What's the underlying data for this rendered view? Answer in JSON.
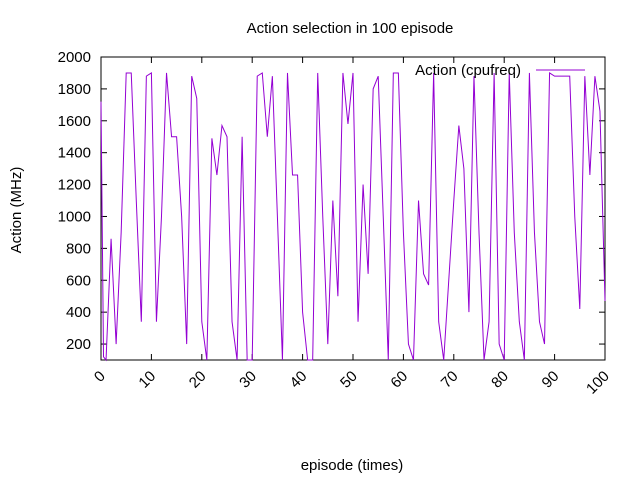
{
  "chart_data": {
    "type": "line",
    "title": "Action selection in 100 episode",
    "xlabel": "episode (times)",
    "ylabel": "Action (MHz)",
    "xlim": [
      0,
      100
    ],
    "ylim": [
      100,
      2000
    ],
    "xticks": [
      0,
      10,
      20,
      30,
      40,
      50,
      60,
      70,
      80,
      90,
      100
    ],
    "yticks": [
      200,
      400,
      600,
      800,
      1000,
      1200,
      1400,
      1600,
      1800,
      2000
    ],
    "grid": false,
    "legend_position": "top-right",
    "series": [
      {
        "name": "Action (cpufreq)",
        "color": "#9400d3",
        "x": [
          0,
          0.5,
          1,
          2,
          3,
          4,
          5,
          6,
          7,
          8,
          9,
          10,
          11,
          12,
          13,
          14,
          15,
          16,
          17,
          18,
          19,
          20,
          21,
          22,
          23,
          24,
          25,
          26,
          27,
          28,
          29,
          30,
          31,
          32,
          33,
          34,
          35,
          36,
          37,
          38,
          39,
          40,
          41,
          42,
          43,
          44,
          45,
          46,
          47,
          48,
          49,
          50,
          51,
          52,
          53,
          54,
          55,
          56,
          57,
          58,
          59,
          60,
          61,
          62,
          63,
          64,
          65,
          66,
          67,
          68,
          69,
          70,
          71,
          72,
          73,
          74,
          75,
          76,
          77,
          78,
          79,
          80,
          81,
          82,
          83,
          84,
          85,
          86,
          87,
          88,
          89,
          90,
          91,
          92,
          93,
          94,
          95,
          96,
          97,
          98,
          99,
          100
        ],
        "values": [
          1720,
          120,
          100,
          860,
          200,
          900,
          1900,
          1900,
          1100,
          340,
          1880,
          1900,
          340,
          1000,
          1900,
          1500,
          1500,
          1000,
          200,
          1880,
          1740,
          340,
          100,
          1490,
          1260,
          1570,
          1500,
          340,
          100,
          1500,
          100,
          100,
          1880,
          1900,
          1500,
          1880,
          1000,
          100,
          1900,
          1260,
          1260,
          400,
          100,
          100,
          1900,
          1000,
          200,
          1100,
          500,
          1900,
          1580,
          1900,
          340,
          1200,
          640,
          1800,
          1880,
          1000,
          100,
          1900,
          1900,
          900,
          200,
          100,
          1100,
          640,
          570,
          1900,
          340,
          100,
          600,
          1100,
          1570,
          1300,
          400,
          1880,
          900,
          100,
          340,
          1900,
          200,
          100,
          1900,
          900,
          340,
          100,
          1900,
          900,
          340,
          200,
          1900,
          1880,
          1880,
          1880,
          1880,
          1000,
          420,
          1880,
          1260,
          1880,
          1660,
          470
        ]
      }
    ]
  }
}
